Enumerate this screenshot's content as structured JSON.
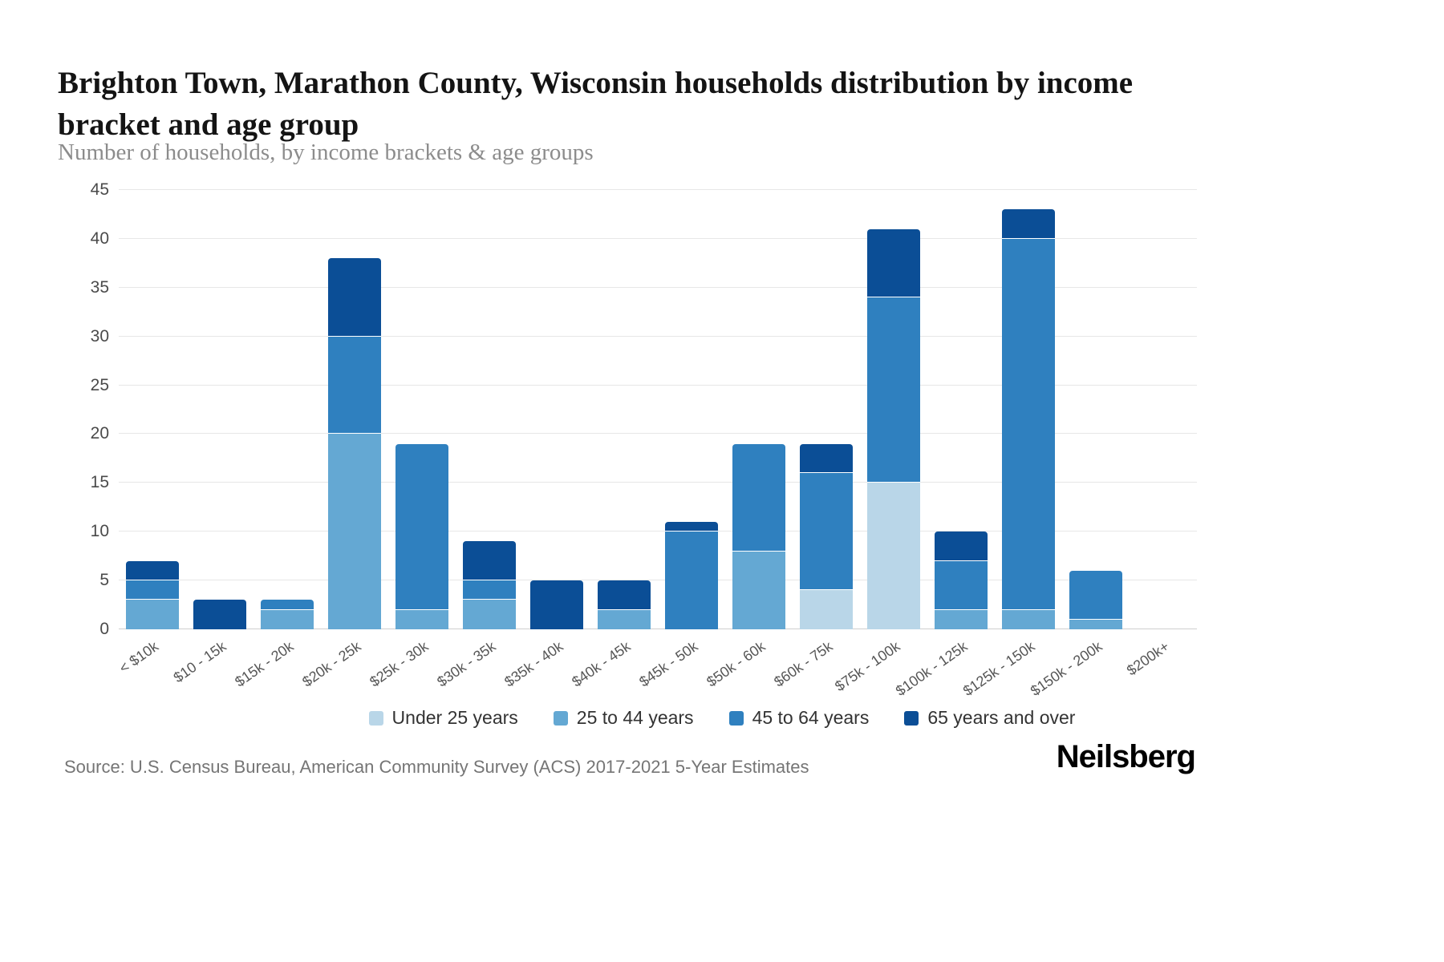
{
  "header": {
    "title": "Brighton Town, Marathon County, Wisconsin households distribution by income bracket and age group",
    "subtitle": "Number of households, by income brackets & age groups"
  },
  "footer": {
    "source": "Source: U.S. Census Bureau, American Community Survey (ACS) 2017-2021 5-Year Estimates",
    "brand": "Neilsberg"
  },
  "chart_data": {
    "type": "bar",
    "variant": "stacked",
    "title": "Brighton Town, Marathon County, Wisconsin households distribution by income bracket and age group",
    "subtitle": "Number of households, by income brackets & age groups",
    "xlabel": "",
    "ylabel": "Number of households",
    "ylim": [
      0,
      45
    ],
    "ytick_step": 5,
    "grid": true,
    "legend_position": "bottom",
    "categories": [
      "< $10k",
      "$10 - 15k",
      "$15k - 20k",
      "$20k - 25k",
      "$25k - 30k",
      "$30k - 35k",
      "$35k - 40k",
      "$40k - 45k",
      "$45k - 50k",
      "$50k - 60k",
      "$60k - 75k",
      "$75k - 100k",
      "$100k - 125k",
      "$125k - 150k",
      "$150k - 200k",
      "$200k+"
    ],
    "series": [
      {
        "name": "Under 25 years",
        "color": "#b9d6e8",
        "values": [
          0,
          0,
          0,
          0,
          0,
          0,
          0,
          0,
          0,
          0,
          4,
          15,
          0,
          0,
          0,
          0
        ]
      },
      {
        "name": "25 to 44 years",
        "color": "#64a8d3",
        "values": [
          3,
          0,
          2,
          20,
          2,
          3,
          0,
          2,
          0,
          8,
          0,
          0,
          2,
          2,
          1,
          0
        ]
      },
      {
        "name": "45 to 64 years",
        "color": "#2f80bf",
        "values": [
          2,
          0,
          1,
          10,
          17,
          2,
          0,
          0,
          10,
          11,
          12,
          19,
          5,
          38,
          5,
          0
        ]
      },
      {
        "name": "65 years and over",
        "color": "#0b4e96",
        "values": [
          2,
          3,
          0,
          8,
          0,
          4,
          5,
          3,
          1,
          0,
          3,
          7,
          3,
          3,
          0,
          0
        ]
      }
    ],
    "totals": [
      7,
      3,
      3,
      38,
      19,
      9,
      5,
      5,
      11,
      19,
      19,
      41,
      10,
      43,
      6,
      0
    ]
  }
}
